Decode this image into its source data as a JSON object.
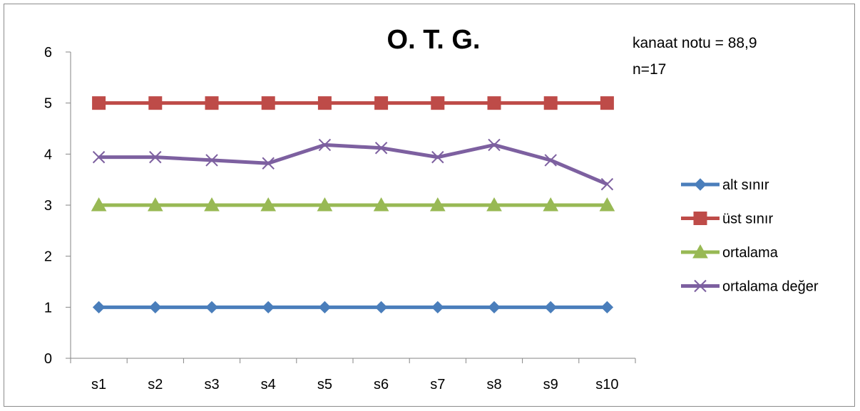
{
  "chart_data": {
    "type": "line",
    "title": "O. T. G.",
    "annotations": [
      "kanaat notu = 88,9",
      "n=17"
    ],
    "categories": [
      "s1",
      "s2",
      "s3",
      "s4",
      "s5",
      "s6",
      "s7",
      "s8",
      "s9",
      "s10"
    ],
    "ylim": [
      0,
      6
    ],
    "yticks": [
      "0",
      "1",
      "2",
      "3",
      "4",
      "5",
      "6"
    ],
    "grid": false,
    "legend_position": "right",
    "series": [
      {
        "name": "alt sınır",
        "color": "#4a7ebb",
        "marker": "diamond",
        "values": [
          1,
          1,
          1,
          1,
          1,
          1,
          1,
          1,
          1,
          1
        ]
      },
      {
        "name": "üst sınır",
        "color": "#be4b48",
        "marker": "square",
        "values": [
          5,
          5,
          5,
          5,
          5,
          5,
          5,
          5,
          5,
          5
        ]
      },
      {
        "name": "ortalama",
        "color": "#98b954",
        "marker": "triangle",
        "values": [
          3,
          3,
          3,
          3,
          3,
          3,
          3,
          3,
          3,
          3
        ]
      },
      {
        "name": "ortalama değer",
        "color": "#7d60a0",
        "marker": "x",
        "values": [
          3.94,
          3.94,
          3.88,
          3.82,
          4.18,
          4.12,
          3.94,
          4.18,
          3.88,
          3.41
        ]
      }
    ]
  }
}
